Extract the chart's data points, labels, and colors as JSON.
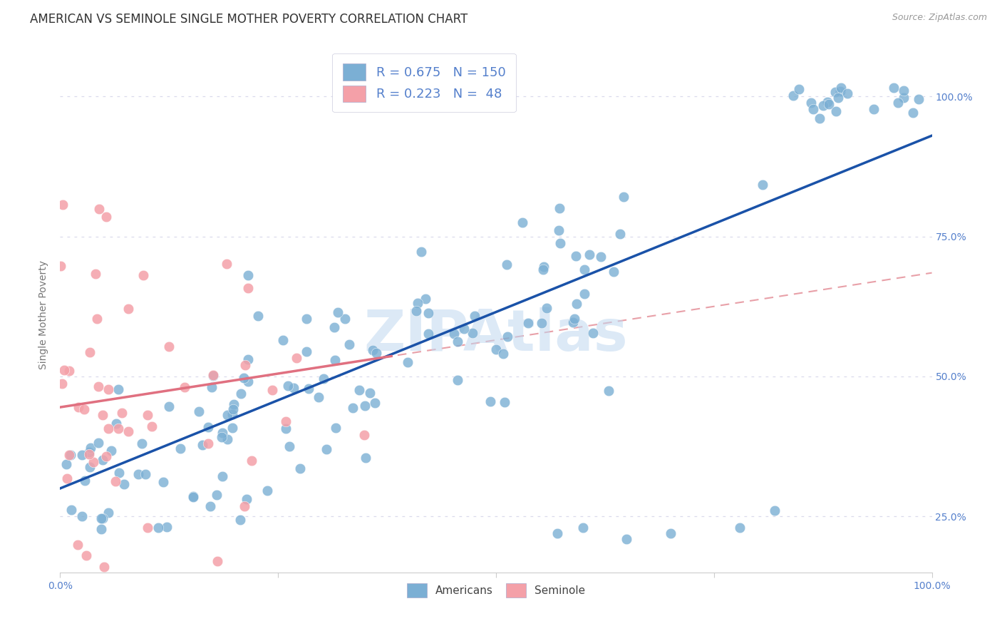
{
  "title": "AMERICAN VS SEMINOLE SINGLE MOTHER POVERTY CORRELATION CHART",
  "source": "Source: ZipAtlas.com",
  "ylabel": "Single Mother Poverty",
  "americans_R": 0.675,
  "americans_N": 150,
  "seminole_R": 0.223,
  "seminole_N": 48,
  "americans_color": "#7BAFD4",
  "seminole_color": "#F4A0A8",
  "americans_line_color": "#1A52A8",
  "seminole_line_color": "#E07080",
  "seminole_dash_color": "#E8A0A8",
  "background_color": "#ffffff",
  "grid_color": "#DADAEC",
  "watermark": "ZIPAtlas",
  "watermark_color": "#C0D8F0",
  "title_fontsize": 12,
  "label_fontsize": 10,
  "legend_fontsize": 13,
  "tick_label_color": "#5580CC",
  "ylabel_color": "#777777",
  "source_color": "#999999",
  "am_intercept": 0.3,
  "am_slope": 0.63,
  "sem_intercept": 0.445,
  "sem_slope": 0.24,
  "ymin": 0.15,
  "ymax": 1.07,
  "xmin": 0.0,
  "xmax": 1.0
}
